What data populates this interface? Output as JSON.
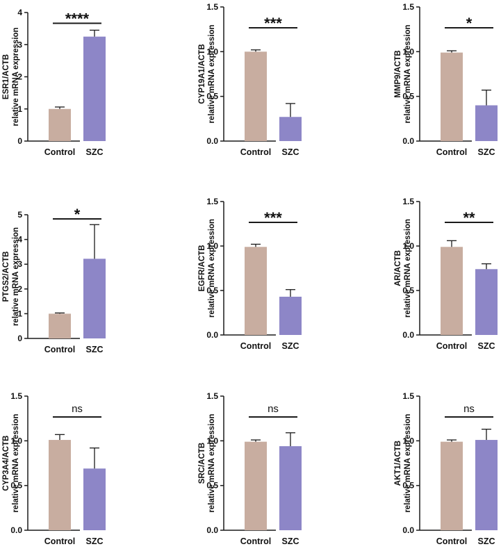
{
  "colors": {
    "control": "#C8ADA0",
    "szc": "#8D86C7",
    "axis": "#1a1a1a"
  },
  "chart_data": [
    {
      "type": "bar",
      "gene": "ESR1/ACTB",
      "ylabel_sub": "relative mRNA expression",
      "categories": [
        "Control",
        "SZC"
      ],
      "values": [
        1.0,
        3.25
      ],
      "errors": [
        0.06,
        0.2
      ],
      "ylim": [
        0,
        4
      ],
      "yticks": [
        "0",
        "1",
        "2",
        "3",
        "4"
      ],
      "significance": "****"
    },
    {
      "type": "bar",
      "gene": "CYP19A1/ACTB",
      "ylabel_sub": "relative mRNA expression",
      "categories": [
        "Control",
        "SZC"
      ],
      "values": [
        1.0,
        0.27
      ],
      "errors": [
        0.02,
        0.15
      ],
      "ylim": [
        0,
        1.5
      ],
      "yticks": [
        "0.0",
        "0.5",
        "1.0",
        "1.5"
      ],
      "significance": "***"
    },
    {
      "type": "bar",
      "gene": "MMP9/ACTB",
      "ylabel_sub": "relative mRNA expression",
      "categories": [
        "Control",
        "SZC"
      ],
      "values": [
        0.99,
        0.4
      ],
      "errors": [
        0.02,
        0.17
      ],
      "ylim": [
        0,
        1.5
      ],
      "yticks": [
        "0.0",
        "0.5",
        "1.0",
        "1.5"
      ],
      "significance": "*"
    },
    {
      "type": "bar",
      "gene": "PTGS2/ACTB",
      "ylabel_sub": "relative mRNA expression",
      "categories": [
        "Control",
        "SZC"
      ],
      "values": [
        1.0,
        3.22
      ],
      "errors": [
        0.03,
        1.38
      ],
      "ylim": [
        0,
        5
      ],
      "yticks": [
        "0",
        "1",
        "2",
        "3",
        "4",
        "5"
      ],
      "significance": "*"
    },
    {
      "type": "bar",
      "gene": "EGFR/ACTB",
      "ylabel_sub": "relative mRNA expression",
      "categories": [
        "Control",
        "SZC"
      ],
      "values": [
        0.99,
        0.43
      ],
      "errors": [
        0.03,
        0.08
      ],
      "ylim": [
        0,
        1.5
      ],
      "yticks": [
        "0.0",
        "0.5",
        "1.0",
        "1.5"
      ],
      "significance": "***"
    },
    {
      "type": "bar",
      "gene": "AR/ACTB",
      "ylabel_sub": "relative mRNA expression",
      "categories": [
        "Control",
        "SZC"
      ],
      "values": [
        0.99,
        0.74
      ],
      "errors": [
        0.07,
        0.06
      ],
      "ylim": [
        0,
        1.5
      ],
      "yticks": [
        "0.0",
        "0.5",
        "1.0",
        "1.5"
      ],
      "significance": "**"
    },
    {
      "type": "bar",
      "gene": "CYP3A4/ACTB",
      "ylabel_sub": "relative mRNA expression",
      "categories": [
        "Control",
        "SZC"
      ],
      "values": [
        1.01,
        0.69
      ],
      "errors": [
        0.06,
        0.23
      ],
      "ylim": [
        0,
        1.5
      ],
      "yticks": [
        "0.0",
        "0.5",
        "1.0",
        "1.5"
      ],
      "significance": "ns"
    },
    {
      "type": "bar",
      "gene": "SRC/ACTB",
      "ylabel_sub": "relative mRNA expression",
      "categories": [
        "Control",
        "SZC"
      ],
      "values": [
        0.99,
        0.94
      ],
      "errors": [
        0.02,
        0.15
      ],
      "ylim": [
        0,
        1.5
      ],
      "yticks": [
        "0.0",
        "0.5",
        "1.0",
        "1.5"
      ],
      "significance": "ns"
    },
    {
      "type": "bar",
      "gene": "AKT1/ACTB",
      "ylabel_sub": "relative mRNA expression",
      "categories": [
        "Control",
        "SZC"
      ],
      "values": [
        0.99,
        1.01
      ],
      "errors": [
        0.02,
        0.12
      ],
      "ylim": [
        0,
        1.5
      ],
      "yticks": [
        "0.0",
        "0.5",
        "1.0",
        "1.5"
      ],
      "significance": "ns"
    }
  ]
}
